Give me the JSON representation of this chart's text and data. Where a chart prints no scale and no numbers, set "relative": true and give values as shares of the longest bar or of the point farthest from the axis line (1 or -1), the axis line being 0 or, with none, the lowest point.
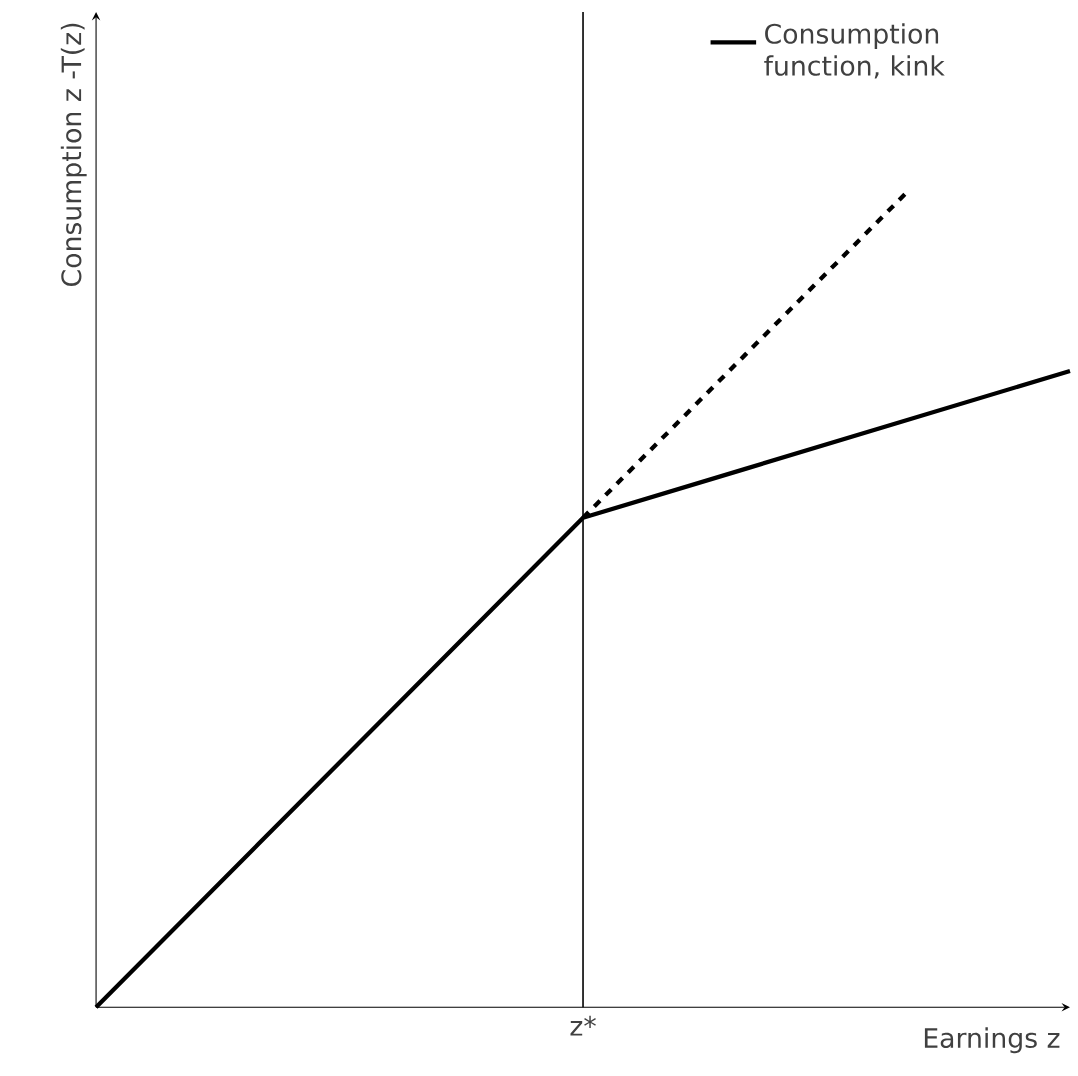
{
  "chart_data": {
    "type": "line",
    "relative": true,
    "xlabel": "Earnings z",
    "ylabel": "Consumption z -T(z)",
    "categories": [
      null,
      null,
      null,
      null,
      null,
      null,
      null
    ],
    "series": [
      {
        "name": "Consumption function, kink",
        "color": "#000000",
        "values": [
          0,
          0.2,
          0.4,
          0.6,
          0.66,
          0.72,
          0.78
        ]
      },
      {
        "color": "#000000",
        "line_style": "dashed",
        "values": [
          null,
          null,
          null,
          0.6,
          0.8,
          1.0,
          null
        ]
      }
    ],
    "annotations": [
      "z*"
    ],
    "legend": "top right"
  }
}
